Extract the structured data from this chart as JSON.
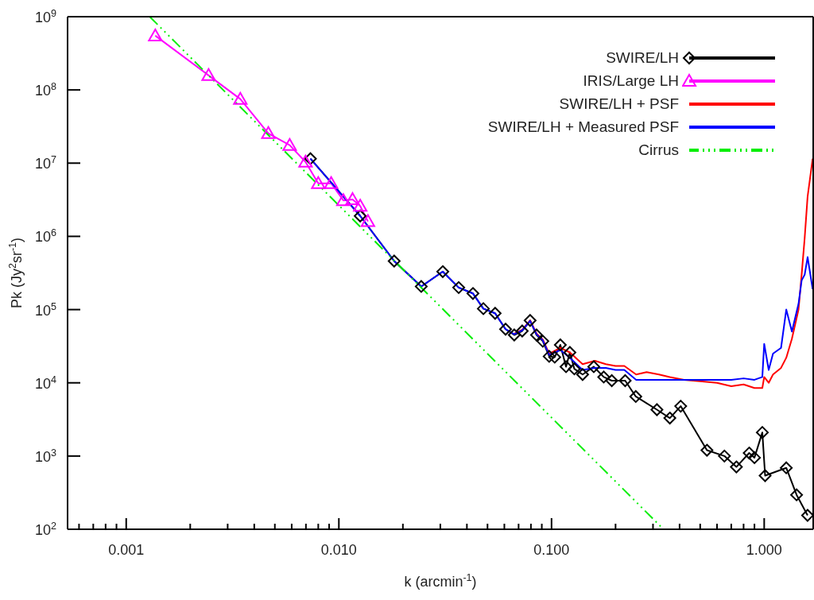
{
  "chart_data": {
    "type": "line",
    "xlabel": "k (arcmin$^{-1}$)",
    "ylabel": "Pk (Jy$^{2}$sr$^{-1}$)",
    "log": "xy",
    "legend": "top right",
    "xlim": [
      0.00053,
      1.7
    ],
    "ylim": [
      100,
      1000000000
    ],
    "xticks": [
      {
        "value": 0.0006,
        "label": null
      },
      {
        "value": 0.0007,
        "label": null
      },
      {
        "value": 0.0008,
        "label": null
      },
      {
        "value": 0.0009,
        "label": null
      },
      {
        "value": 0.001,
        "label": "0.001"
      },
      {
        "value": 0.002,
        "label": null
      },
      {
        "value": 0.003,
        "label": null
      },
      {
        "value": 0.004,
        "label": null
      },
      {
        "value": 0.005,
        "label": null
      },
      {
        "value": 0.006,
        "label": null
      },
      {
        "value": 0.007,
        "label": null
      },
      {
        "value": 0.008,
        "label": null
      },
      {
        "value": 0.009,
        "label": null
      },
      {
        "value": 0.01,
        "label": "0.010"
      },
      {
        "value": 0.02,
        "label": null
      },
      {
        "value": 0.03,
        "label": null
      },
      {
        "value": 0.04,
        "label": null
      },
      {
        "value": 0.05,
        "label": null
      },
      {
        "value": 0.06,
        "label": null
      },
      {
        "value": 0.07,
        "label": null
      },
      {
        "value": 0.08,
        "label": null
      },
      {
        "value": 0.09,
        "label": null
      },
      {
        "value": 0.1,
        "label": "0.100"
      },
      {
        "value": 0.2,
        "label": null
      },
      {
        "value": 0.3,
        "label": null
      },
      {
        "value": 0.4,
        "label": null
      },
      {
        "value": 0.5,
        "label": null
      },
      {
        "value": 0.6,
        "label": null
      },
      {
        "value": 0.7,
        "label": null
      },
      {
        "value": 0.8,
        "label": null
      },
      {
        "value": 0.9,
        "label": null
      },
      {
        "value": 1,
        "label": "1.000"
      }
    ],
    "yticks": [
      {
        "value": 100,
        "label": "10$^{2}$"
      },
      {
        "value": 1000,
        "label": "10$^{3}$"
      },
      {
        "value": 10000,
        "label": "10$^{4}$"
      },
      {
        "value": 100000,
        "label": "10$^{5}$"
      },
      {
        "value": 1000000,
        "label": "10$^{6}$"
      },
      {
        "value": 10000000,
        "label": "10$^{7}$"
      },
      {
        "value": 100000000,
        "label": "10$^{8}$"
      },
      {
        "value": 1000000000,
        "label": "10$^{9}$"
      }
    ],
    "series": [
      {
        "name": "SWIRE/LH",
        "color": "#000000",
        "marker": "diamond",
        "line_style": "solid",
        "x": [
          0.00735,
          0.0126,
          0.0182,
          0.0244,
          0.0308,
          0.0366,
          0.0427,
          0.0478,
          0.0543,
          0.0608,
          0.0668,
          0.0728,
          0.0793,
          0.085,
          0.091,
          0.0975,
          0.1035,
          0.11,
          0.117,
          0.122,
          0.128,
          0.14,
          0.158,
          0.176,
          0.192,
          0.222,
          0.249,
          0.313,
          0.36,
          0.405,
          0.538,
          0.65,
          0.74,
          0.85,
          0.9,
          0.98,
          1.01,
          1.27,
          1.42,
          1.6
        ],
        "values": [
          11500000,
          1900000,
          460000,
          207000,
          330000,
          200000,
          166000,
          103000,
          89000,
          54000,
          45000,
          51000,
          71000,
          45000,
          37000,
          23000,
          22400,
          33000,
          16600,
          26000,
          15500,
          13000,
          16600,
          12000,
          10700,
          10700,
          6500,
          4300,
          3300,
          4800,
          1200,
          1000,
          710,
          1100,
          950,
          2100,
          540,
          690,
          295,
          155
        ]
      },
      {
        "name": "IRIS/Large LH",
        "color": "#ff00ff",
        "marker": "triangle",
        "line_style": "solid",
        "x": [
          0.00137,
          0.00244,
          0.00344,
          0.00466,
          0.00587,
          0.00697,
          0.008,
          0.0092,
          0.0105,
          0.0116,
          0.0126,
          0.0137
        ],
        "values": [
          550000000,
          158000000,
          75000000,
          25500000,
          17600000,
          10400000,
          5300000,
          5300000,
          3100000,
          3200000,
          2600000,
          1600000
        ]
      },
      {
        "name": "SWIRE/LH + PSF",
        "color": "#ff0000",
        "marker": "none",
        "line_style": "solid",
        "x": [
          0.0668,
          0.0728,
          0.0793,
          0.085,
          0.091,
          0.0975,
          0.11,
          0.122,
          0.14,
          0.16,
          0.18,
          0.2,
          0.22,
          0.25,
          0.28,
          0.32,
          0.36,
          0.42,
          0.5,
          0.6,
          0.7,
          0.8,
          0.9,
          0.98,
          1.0,
          1.05,
          1.1,
          1.2,
          1.27,
          1.35,
          1.45,
          1.5,
          1.55,
          1.6,
          1.69
        ],
        "values": [
          47000,
          53000,
          71000,
          47000,
          39000,
          25000,
          30000,
          26000,
          18000,
          20000,
          18000,
          17000,
          17000,
          13000,
          14000,
          13000,
          12000,
          11000,
          10500,
          10000,
          9000,
          9500,
          8500,
          8500,
          12000,
          10000,
          13000,
          16000,
          22000,
          40000,
          100000,
          300000,
          950000,
          3500000,
          11500000
        ]
      },
      {
        "name": "SWIRE/LH + Measured PSF",
        "color": "#0000ff",
        "marker": "none",
        "line_style": "solid",
        "x": [
          0.00735,
          0.0126,
          0.0182,
          0.0244,
          0.0308,
          0.0366,
          0.0427,
          0.0478,
          0.0543,
          0.0608,
          0.0668,
          0.0728,
          0.0793,
          0.085,
          0.091,
          0.0975,
          0.11,
          0.122,
          0.14,
          0.16,
          0.18,
          0.2,
          0.22,
          0.25,
          0.28,
          0.32,
          0.36,
          0.42,
          0.5,
          0.6,
          0.7,
          0.8,
          0.9,
          0.98,
          1.0,
          1.05,
          1.1,
          1.2,
          1.27,
          1.35,
          1.45,
          1.5,
          1.55,
          1.6,
          1.69
        ],
        "values": [
          11500000,
          1900000,
          460000,
          207000,
          330000,
          200000,
          166000,
          103000,
          89000,
          54000,
          46000,
          52000,
          70000,
          46000,
          38000,
          24000,
          28000,
          22000,
          15000,
          16000,
          16000,
          15000,
          15000,
          11000,
          11000,
          11000,
          11000,
          11000,
          11000,
          11000,
          11000,
          11500,
          11000,
          12000,
          34000,
          15000,
          25000,
          30000,
          100000,
          50000,
          120000,
          250000,
          300000,
          520000,
          190000
        ]
      },
      {
        "name": "Cirrus",
        "color": "#00ee00",
        "marker": "none",
        "line_style": "dashed",
        "x": [
          0.00129,
          0.336
        ],
        "values": [
          1000000000,
          100
        ]
      }
    ]
  }
}
